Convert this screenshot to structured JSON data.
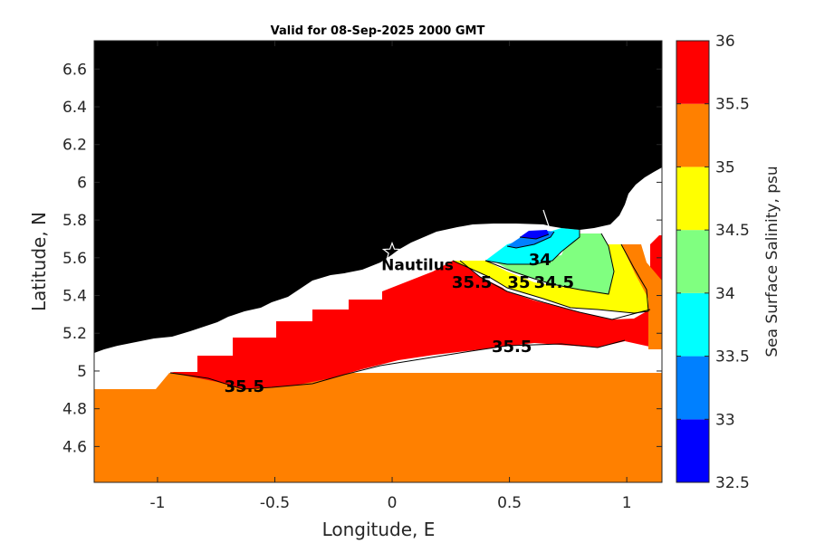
{
  "title": "Valid for 08-Sep-2025 2000 GMT",
  "x_axis": {
    "label": "Longitude, E",
    "ticks": [
      {
        "value": -1,
        "label": "-1"
      },
      {
        "value": -0.5,
        "label": "-0.5"
      },
      {
        "value": 0,
        "label": "0"
      },
      {
        "value": 0.5,
        "label": "0.5"
      },
      {
        "value": 1,
        "label": "1"
      }
    ],
    "range": [
      -1.27,
      1.15
    ]
  },
  "y_axis": {
    "label": "Latitude, N",
    "ticks": [
      {
        "value": 4.6,
        "label": "4.6"
      },
      {
        "value": 4.8,
        "label": "4.8"
      },
      {
        "value": 5,
        "label": "5"
      },
      {
        "value": 5.2,
        "label": "5.2"
      },
      {
        "value": 5.4,
        "label": "5.4"
      },
      {
        "value": 5.6,
        "label": "5.6"
      },
      {
        "value": 5.8,
        "label": "5.8"
      },
      {
        "value": 6,
        "label": "6"
      },
      {
        "value": 6.2,
        "label": "6.2"
      },
      {
        "value": 6.4,
        "label": "6.4"
      },
      {
        "value": 6.6,
        "label": "6.6"
      }
    ],
    "range": [
      4.41,
      6.75
    ]
  },
  "colorbar": {
    "label": "Sea Surface Salinity, psu",
    "range": [
      32.5,
      36
    ],
    "ticks": [
      "32.5",
      "33",
      "33.5",
      "34",
      "34.5",
      "35",
      "35.5",
      "36"
    ],
    "bands": [
      {
        "from": 32.5,
        "to": 33.0,
        "color": "#0000ff"
      },
      {
        "from": 33.0,
        "to": 33.5,
        "color": "#0080ff"
      },
      {
        "from": 33.5,
        "to": 34.0,
        "color": "#00ffff"
      },
      {
        "from": 34.0,
        "to": 34.5,
        "color": "#80ff80"
      },
      {
        "from": 34.5,
        "to": 35.0,
        "color": "#ffff00"
      },
      {
        "from": 35.0,
        "to": 35.5,
        "color": "#ff8000"
      },
      {
        "from": 35.5,
        "to": 36.0,
        "color": "#ff0000"
      }
    ]
  },
  "colors": {
    "land": "#000000",
    "no_data": "#ffffff",
    "orange": "#ff8000",
    "red": "#ff0000",
    "yellow": "#ffff00",
    "green": "#80ff80",
    "cyan": "#00ffff",
    "lightblue": "#0080ff",
    "blue": "#0000ff"
  },
  "contour_labels": [
    {
      "text": "35.5",
      "lon": -0.63,
      "lat": 4.89
    },
    {
      "text": "35.5",
      "lon": 0.34,
      "lat": 5.44
    },
    {
      "text": "35",
      "lon": 0.54,
      "lat": 5.44
    },
    {
      "text": "34.5",
      "lon": 0.69,
      "lat": 5.44
    },
    {
      "text": "34",
      "lon": 0.63,
      "lat": 5.56
    },
    {
      "text": "35.5",
      "lon": 0.51,
      "lat": 5.1
    }
  ],
  "station": {
    "name": "Nautilus",
    "lon": 0.0,
    "lat": 5.63,
    "icon": "star-icon"
  }
}
